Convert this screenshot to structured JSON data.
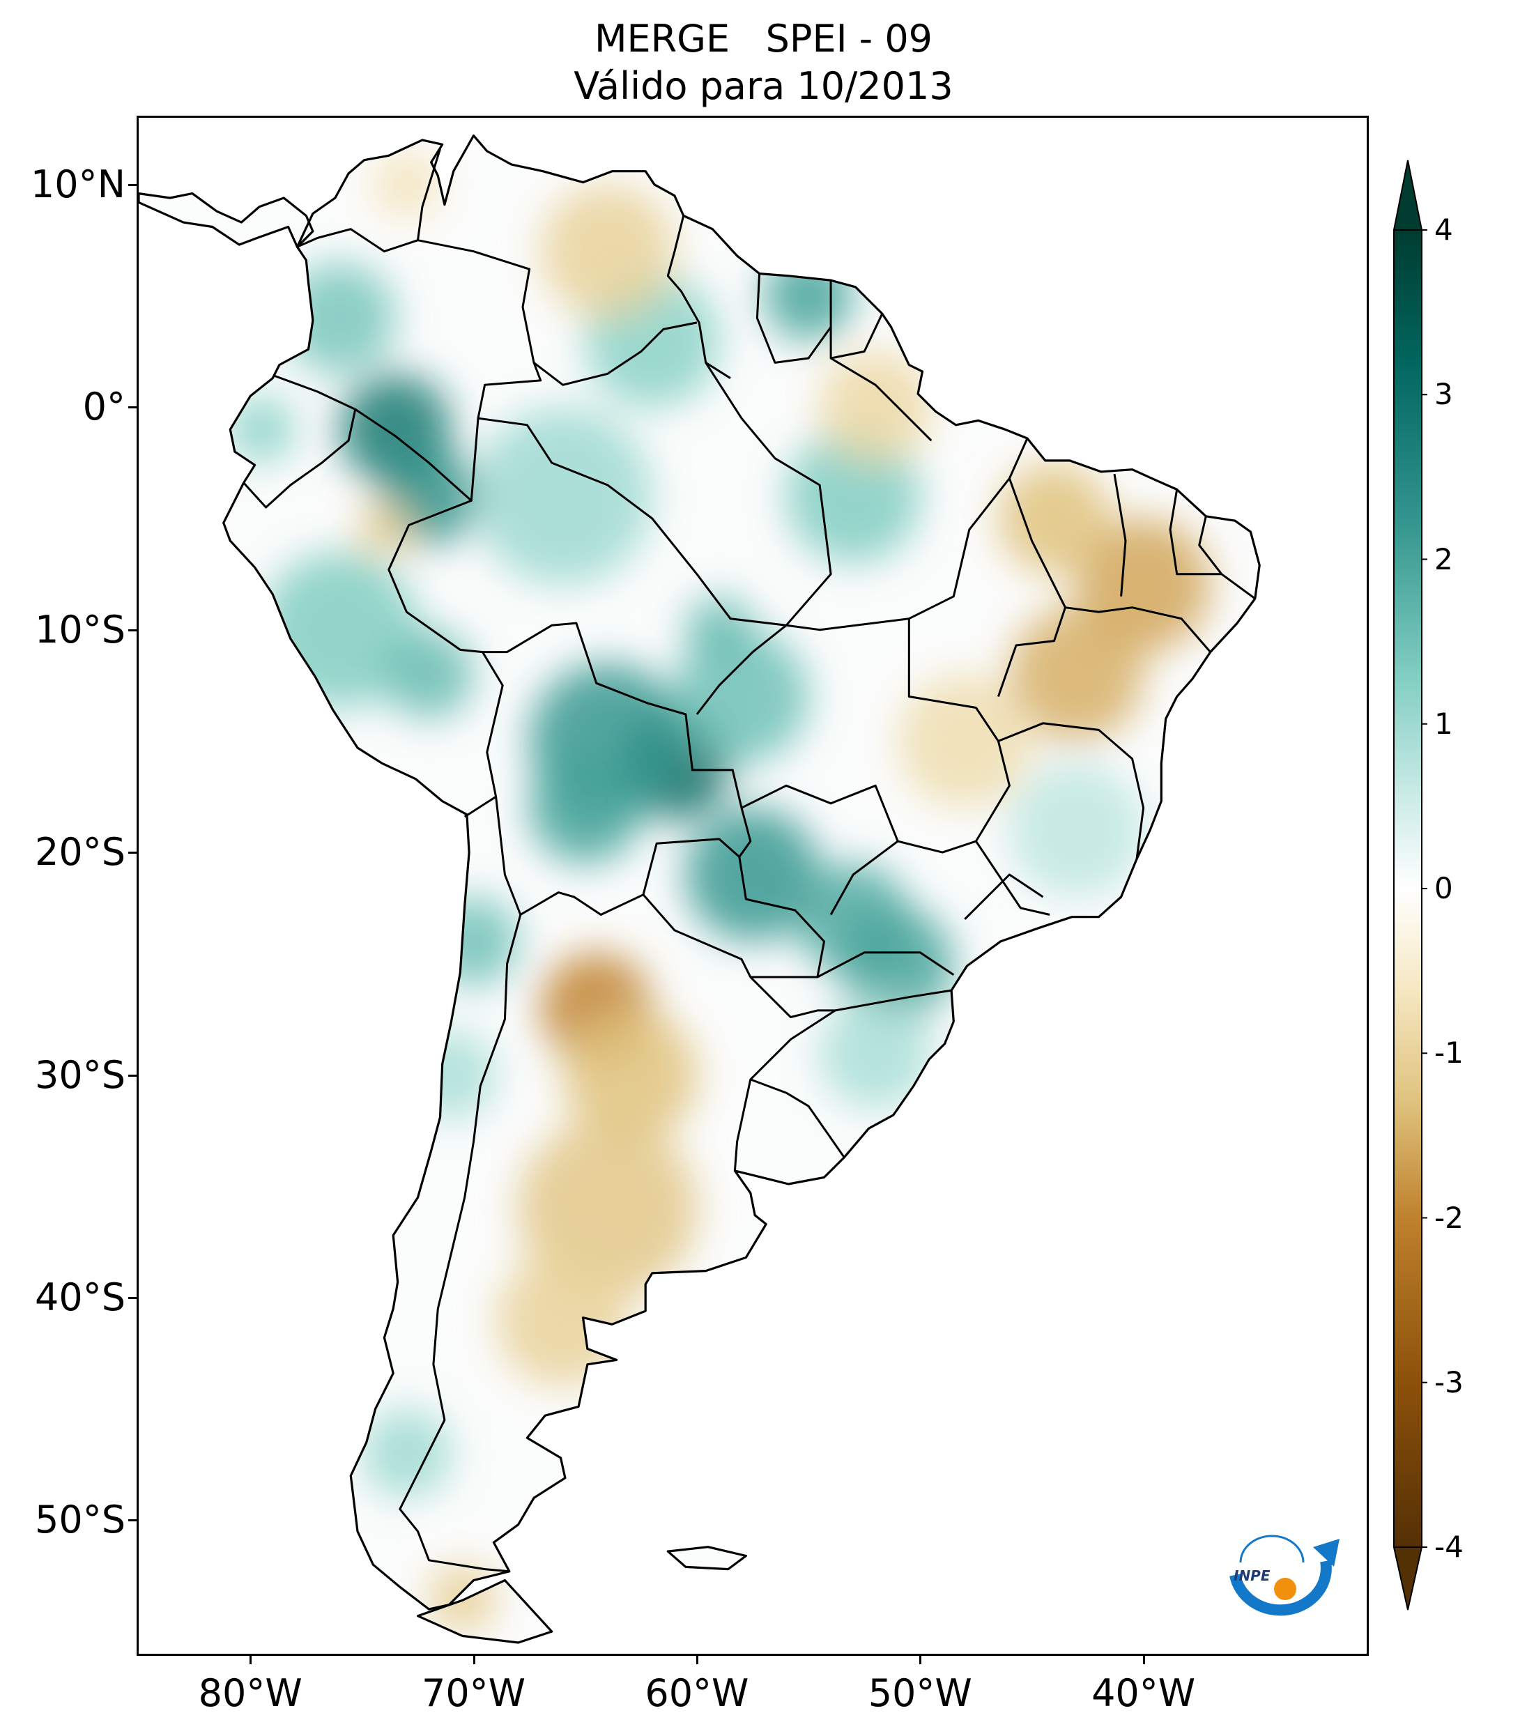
{
  "title": {
    "line1": "MERGE   SPEI - 09",
    "line2": "Válido para 10/2013"
  },
  "map": {
    "region": "South America",
    "projection": "lon-lat",
    "lon_range": [
      -85,
      -30
    ],
    "lat_range": [
      -56,
      13
    ],
    "lat_ticks": [
      {
        "value": 10,
        "label": "10°N"
      },
      {
        "value": 0,
        "label": "0°"
      },
      {
        "value": -10,
        "label": "10°S"
      },
      {
        "value": -20,
        "label": "20°S"
      },
      {
        "value": -30,
        "label": "30°S"
      },
      {
        "value": -40,
        "label": "40°S"
      },
      {
        "value": -50,
        "label": "50°S"
      }
    ],
    "lon_ticks": [
      {
        "value": -80,
        "label": "80°W"
      },
      {
        "value": -70,
        "label": "70°W"
      },
      {
        "value": -60,
        "label": "60°W"
      },
      {
        "value": -50,
        "label": "50°W"
      },
      {
        "value": -40,
        "label": "40°W"
      }
    ],
    "anomaly_patches": [
      {
        "lon": -73.5,
        "lat": -1,
        "value": 2.8,
        "r": 2.5
      },
      {
        "lon": -72,
        "lat": -4,
        "value": 2.3,
        "r": 2.2
      },
      {
        "lon": -76,
        "lat": 4,
        "value": 1.4,
        "r": 2.5
      },
      {
        "lon": -79.5,
        "lat": -1,
        "value": 1.2,
        "r": 1.5
      },
      {
        "lon": -76,
        "lat": -10,
        "value": 1.3,
        "r": 3.5
      },
      {
        "lon": -72,
        "lat": -12,
        "value": 1.6,
        "r": 2
      },
      {
        "lon": -61,
        "lat": -16,
        "value": 3.2,
        "r": 2.5
      },
      {
        "lon": -64,
        "lat": -15,
        "value": 2.2,
        "r": 3.5
      },
      {
        "lon": -65,
        "lat": -18,
        "value": 2.0,
        "r": 2.5
      },
      {
        "lon": -57.5,
        "lat": -21,
        "value": 2.2,
        "r": 3
      },
      {
        "lon": -53,
        "lat": -23,
        "value": 1.9,
        "r": 2.5
      },
      {
        "lon": -51,
        "lat": -25,
        "value": 2.0,
        "r": 2.5
      },
      {
        "lon": -58,
        "lat": -13,
        "value": 1.5,
        "r": 3
      },
      {
        "lon": -59,
        "lat": -10,
        "value": 1.6,
        "r": 1.5
      },
      {
        "lon": -53,
        "lat": -4,
        "value": 1.3,
        "r": 3
      },
      {
        "lon": -55,
        "lat": 5,
        "value": 2.0,
        "r": 2
      },
      {
        "lon": -62,
        "lat": 3,
        "value": 1.2,
        "r": 3
      },
      {
        "lon": -66,
        "lat": -4,
        "value": 1.0,
        "r": 4
      },
      {
        "lon": -70,
        "lat": -24,
        "value": 1.5,
        "r": 2
      },
      {
        "lon": -71,
        "lat": -30,
        "value": 0.9,
        "r": 2
      },
      {
        "lon": -73,
        "lat": -47,
        "value": 1.0,
        "r": 2
      },
      {
        "lon": -43,
        "lat": -19,
        "value": 0.7,
        "r": 3
      },
      {
        "lon": -52,
        "lat": -29,
        "value": 0.9,
        "r": 2.5
      },
      {
        "lon": -64.5,
        "lat": -27,
        "value": -2.0,
        "r": 2.5
      },
      {
        "lon": -63,
        "lat": -30,
        "value": -1.3,
        "r": 3
      },
      {
        "lon": -64,
        "lat": -36,
        "value": -1.2,
        "r": 4
      },
      {
        "lon": -66,
        "lat": -41,
        "value": -1.0,
        "r": 3
      },
      {
        "lon": -40,
        "lat": -8,
        "value": -1.6,
        "r": 3
      },
      {
        "lon": -43,
        "lat": -12,
        "value": -1.5,
        "r": 3
      },
      {
        "lon": -44,
        "lat": -5,
        "value": -1.3,
        "r": 2.5
      },
      {
        "lon": -48,
        "lat": -15,
        "value": -0.8,
        "r": 3
      },
      {
        "lon": -52,
        "lat": 0,
        "value": -0.9,
        "r": 2.5
      },
      {
        "lon": -64,
        "lat": 7,
        "value": -1.0,
        "r": 3
      },
      {
        "lon": -74,
        "lat": -5.5,
        "value": -1.1,
        "r": 1.2
      },
      {
        "lon": -70.5,
        "lat": -53.5,
        "value": -1.1,
        "r": 1.5
      },
      {
        "lon": -73,
        "lat": 10,
        "value": -0.7,
        "r": 1.5
      }
    ]
  },
  "colorbar": {
    "min": -4,
    "max": 4,
    "ticks": [
      {
        "value": 4,
        "label": "4"
      },
      {
        "value": 3,
        "label": "3"
      },
      {
        "value": 2,
        "label": "2"
      },
      {
        "value": 1,
        "label": "1"
      },
      {
        "value": 0,
        "label": "0"
      },
      {
        "value": -1,
        "label": "-1"
      },
      {
        "value": -2,
        "label": "-2"
      },
      {
        "value": -3,
        "label": "-3"
      },
      {
        "value": -4,
        "label": "-4"
      }
    ],
    "extend": "both",
    "colors": {
      "dry_extreme": "#543005",
      "dry_strong": "#8c510a",
      "dry_moderate": "#bf812d",
      "dry_mild": "#dfc27d",
      "dry_slight": "#f6e8c3",
      "neutral": "#ffffff",
      "wet_slight": "#c7eae5",
      "wet_mild": "#80cdc1",
      "wet_moderate": "#35978f",
      "wet_strong": "#01665e",
      "wet_extreme": "#003c30"
    }
  },
  "logo": {
    "text": "INPE"
  }
}
